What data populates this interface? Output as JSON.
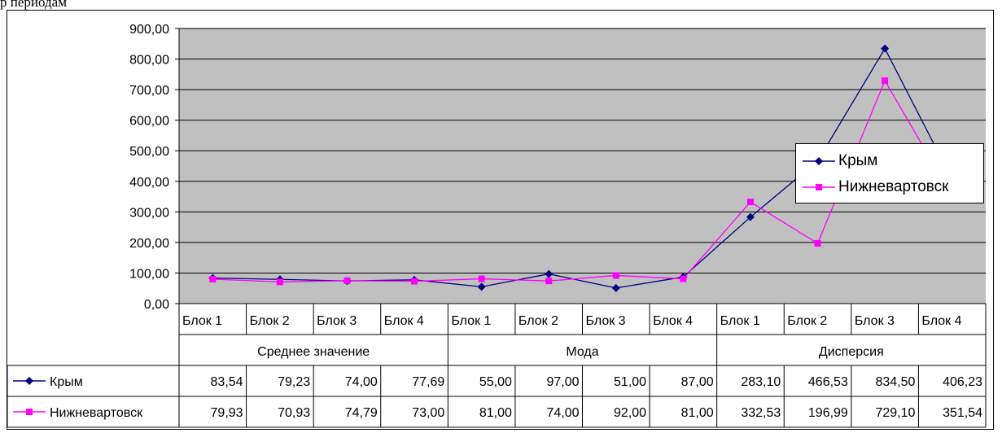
{
  "caption": "р периодам",
  "colors": {
    "plot_bg": "#c0c0c0",
    "krym": "#000080",
    "nizhnevartovsk": "#ff00ff"
  },
  "chart_data": {
    "type": "line",
    "ylim": [
      0,
      900
    ],
    "yticks": [
      "0,00",
      "100,00",
      "200,00",
      "300,00",
      "400,00",
      "500,00",
      "600,00",
      "700,00",
      "800,00",
      "900,00"
    ],
    "groups": [
      "Среднее значение",
      "Мода",
      "Дисперсия"
    ],
    "categories": [
      "Блок 1",
      "Блок 2",
      "Блок 3",
      "Блок 4",
      "Блок 1",
      "Блок 2",
      "Блок 3",
      "Блок 4",
      "Блок 1",
      "Блок 2",
      "Блок 3",
      "Блок 4"
    ],
    "legend_position": "right",
    "series": [
      {
        "name": "Крым",
        "marker": "diamond",
        "values": [
          83.54,
          79.23,
          74.0,
          77.69,
          55.0,
          97.0,
          51.0,
          87.0,
          283.1,
          466.53,
          834.5,
          406.23
        ],
        "labels": [
          "83,54",
          "79,23",
          "74,00",
          "77,69",
          "55,00",
          "97,00",
          "51,00",
          "87,00",
          "283,10",
          "466,53",
          "834,50",
          "406,23"
        ]
      },
      {
        "name": "Нижневартовск",
        "marker": "square",
        "values": [
          79.93,
          70.93,
          74.79,
          73.0,
          81.0,
          74.0,
          92.0,
          81.0,
          332.53,
          196.99,
          729.1,
          351.54
        ],
        "labels": [
          "79,93",
          "70,93",
          "74,79",
          "73,00",
          "81,00",
          "74,00",
          "92,00",
          "81,00",
          "332,53",
          "196,99",
          "729,10",
          "351,54"
        ]
      }
    ]
  }
}
